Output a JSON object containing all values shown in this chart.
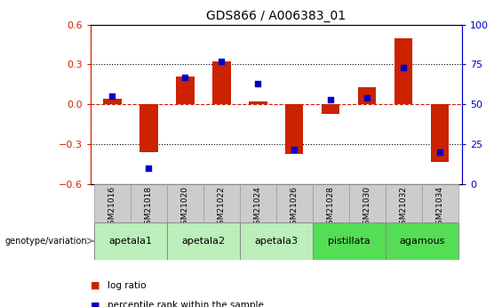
{
  "title": "GDS866 / A006383_01",
  "samples": [
    "GSM21016",
    "GSM21018",
    "GSM21020",
    "GSM21022",
    "GSM21024",
    "GSM21026",
    "GSM21028",
    "GSM21030",
    "GSM21032",
    "GSM21034"
  ],
  "log_ratio": [
    0.04,
    -0.36,
    0.21,
    0.32,
    0.02,
    -0.37,
    -0.07,
    0.13,
    0.5,
    -0.43
  ],
  "percentile_rank": [
    55,
    10,
    67,
    77,
    63,
    22,
    53,
    54,
    73,
    20
  ],
  "groups": [
    {
      "label": "apetala1",
      "samples": [
        "GSM21016",
        "GSM21018"
      ],
      "color": "#bbeebb"
    },
    {
      "label": "apetala2",
      "samples": [
        "GSM21020",
        "GSM21022"
      ],
      "color": "#bbeebb"
    },
    {
      "label": "apetala3",
      "samples": [
        "GSM21024",
        "GSM21026"
      ],
      "color": "#bbeebb"
    },
    {
      "label": "pistillata",
      "samples": [
        "GSM21028",
        "GSM21030"
      ],
      "color": "#55dd55"
    },
    {
      "label": "agamous",
      "samples": [
        "GSM21032",
        "GSM21034"
      ],
      "color": "#55dd55"
    }
  ],
  "ylim_left": [
    -0.6,
    0.6
  ],
  "ylim_right": [
    0,
    100
  ],
  "yticks_left": [
    -0.6,
    -0.3,
    0.0,
    0.3,
    0.6
  ],
  "yticks_right": [
    0,
    25,
    50,
    75,
    100
  ],
  "bar_color": "#cc2200",
  "dot_color": "#0000cc",
  "bar_width": 0.5,
  "dot_size": 20,
  "plot_bg_color": "#ffffff",
  "left_axis_color": "#cc2200",
  "right_axis_color": "#0000cc",
  "sample_box_color": "#cccccc",
  "genotype_label": "genotype/variation",
  "legend_log_ratio": "log ratio",
  "legend_percentile": "percentile rank within the sample"
}
